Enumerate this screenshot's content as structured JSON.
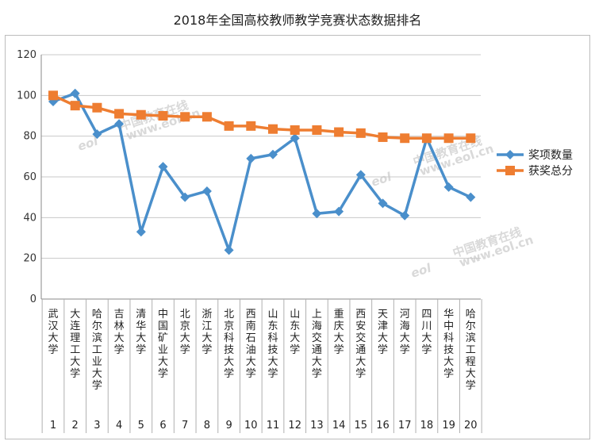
{
  "chart_data": {
    "type": "line",
    "title": "2018年全国高校教师教学竞赛状态数据排名",
    "xlabel": "",
    "ylabel": "",
    "ylim": [
      0,
      120
    ],
    "yticks": [
      0,
      20,
      40,
      60,
      80,
      100,
      120
    ],
    "grid": true,
    "legend_position": "right",
    "categories": [
      "武汉大学",
      "大连理工大学",
      "哈尔滨工业大学",
      "吉林大学",
      "清华大学",
      "中国矿业大学",
      "北京大学",
      "浙江大学",
      "北京科技大学",
      "西南石油大学",
      "山东科技大学",
      "山东大学",
      "上海交通大学",
      "重庆大学",
      "西安交通大学",
      "天津大学",
      "河海大学",
      "四川大学",
      "华中科技大学",
      "哈尔滨工程大学"
    ],
    "ranks": [
      "1",
      "2",
      "3",
      "4",
      "5",
      "6",
      "7",
      "8",
      "9",
      "10",
      "11",
      "12",
      "13",
      "14",
      "15",
      "16",
      "17",
      "18",
      "19",
      "20"
    ],
    "series": [
      {
        "name": "奖项数量",
        "color": "#4a8fcb",
        "marker": "diamond",
        "values": [
          97,
          101,
          81,
          86,
          33,
          65,
          50,
          53,
          24,
          69,
          71,
          79,
          42,
          43,
          61,
          47,
          41,
          79,
          55,
          50
        ]
      },
      {
        "name": "获奖总分",
        "color": "#ee7d31",
        "marker": "square",
        "values": [
          100,
          95,
          94,
          91,
          90.5,
          90,
          89.5,
          89.5,
          85,
          85,
          83.5,
          83,
          83,
          82,
          81.5,
          79.5,
          79,
          79,
          79,
          79
        ]
      }
    ]
  },
  "watermark": {
    "text": "中国教育在线",
    "url": "www.eol.cn",
    "logo": "eol"
  }
}
